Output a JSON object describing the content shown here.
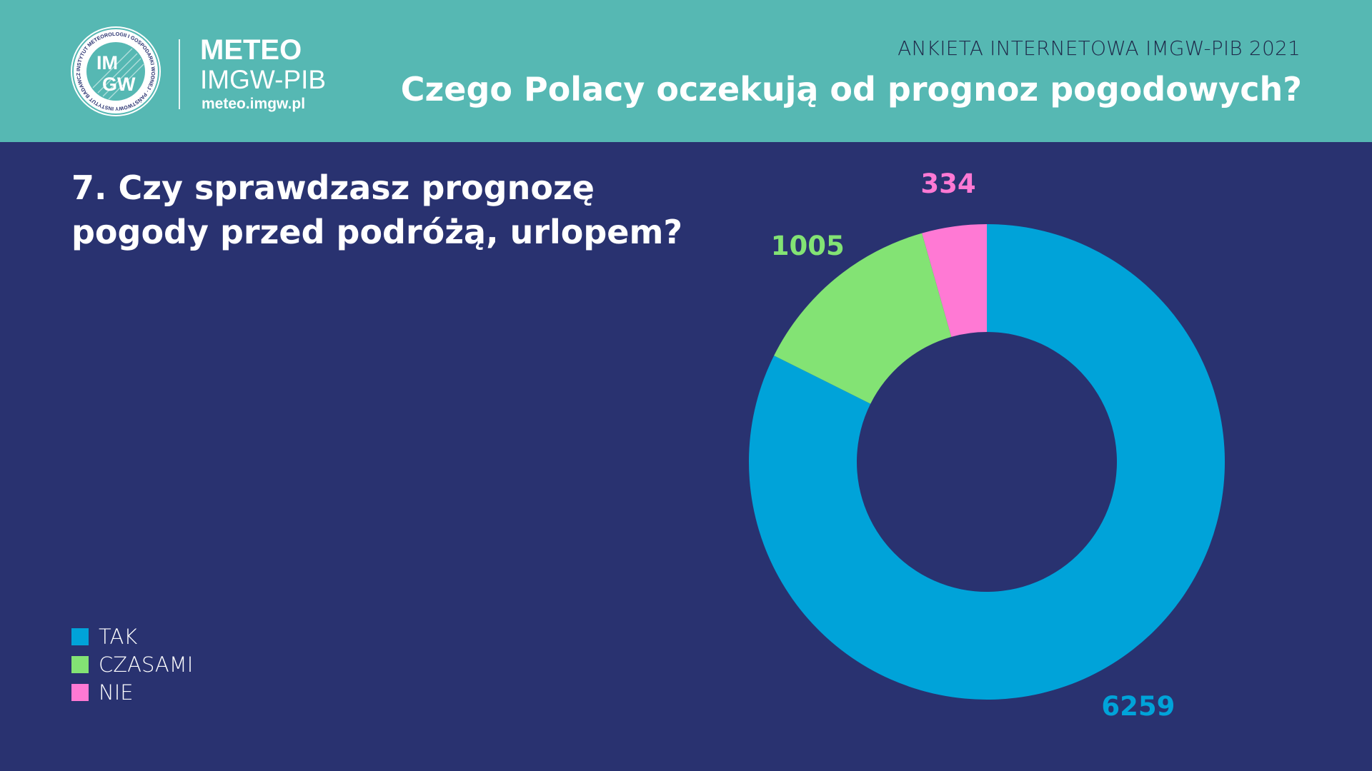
{
  "header": {
    "seal_text": "INSTYTUT METEOROLOGII I GOSPODARKI WODNEJ · PAŃSTWOWY INSTYTUT BADAWCZY",
    "seal_monogram_top": "IM",
    "seal_monogram_bottom": "GW",
    "brand_name": "METEO",
    "brand_subtitle": "IMGW-PIB",
    "brand_url": "meteo.imgw.pl",
    "survey_label": "ANKIETA INTERNETOWA IMGW-PIB 2021",
    "main_title": "Czego Polacy oczekują od prognoz pogodowych?"
  },
  "colors": {
    "header_bg": "#56b8b3",
    "page_bg": "#293270",
    "tak": "#00a3d9",
    "czasami": "#83e374",
    "nie": "#ff79d4"
  },
  "chart_data": {
    "type": "pie",
    "style": "donut",
    "title": "7. Czy sprawdzasz prognozę pogody przed podróżą, urlopem?",
    "categories": [
      "TAK",
      "CZASAMI",
      "NIE"
    ],
    "values": [
      6259,
      1005,
      334
    ],
    "colors": [
      "#00a3d9",
      "#83e374",
      "#ff79d4"
    ],
    "data_labels": [
      "6259",
      "1005",
      "334"
    ],
    "legend_position": "bottom-left",
    "start_angle_deg": 0,
    "direction": "clockwise"
  }
}
